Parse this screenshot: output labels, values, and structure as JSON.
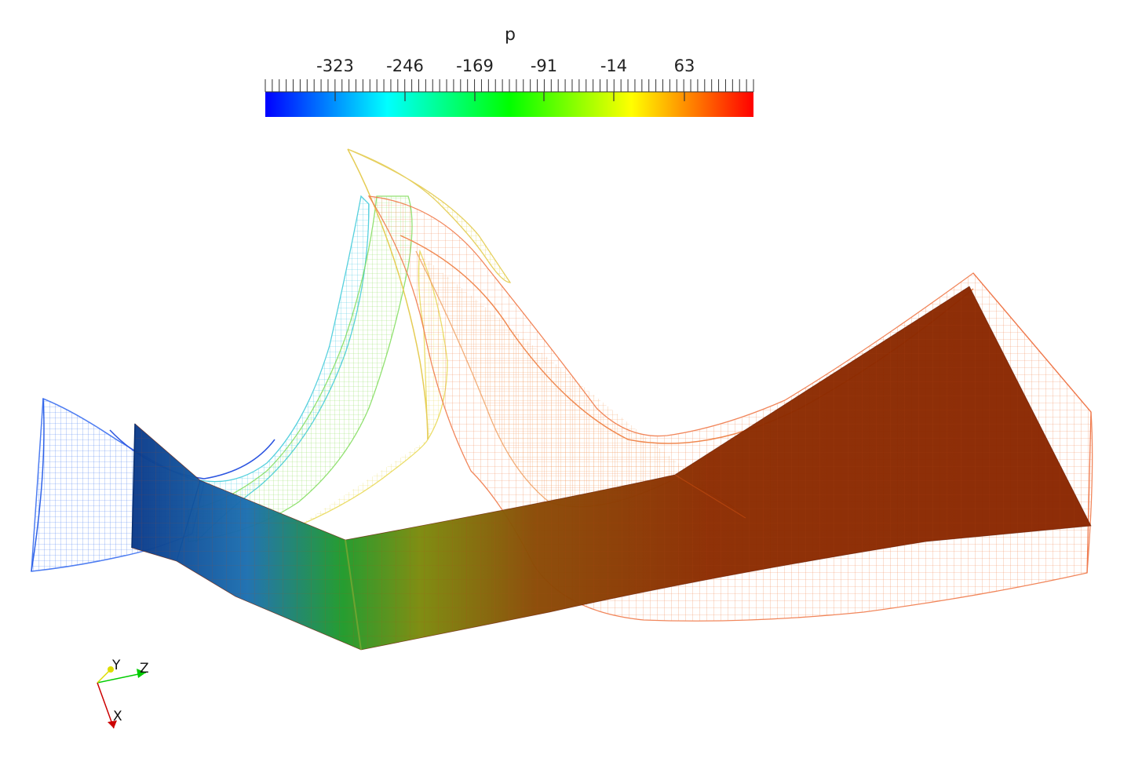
{
  "scalar_bar": {
    "title": "p",
    "tick_labels": [
      "-323",
      "-246",
      "-169",
      "-91",
      "-14",
      "63"
    ],
    "colors": [
      "#0000ff",
      "#00ffff",
      "#00ff00",
      "#ffff00",
      "#ff0000"
    ]
  },
  "orientation_axes": {
    "x_label": "X",
    "y_label": "Y",
    "z_label": "Z",
    "x_color": "#cc0000",
    "y_color": "#dddd00",
    "z_color": "#00cc00"
  },
  "field_colors": {
    "low": "#1a50c8",
    "mid": "#f2e24a",
    "high": "#f07a3a",
    "solid_dark": "#8a2600"
  }
}
